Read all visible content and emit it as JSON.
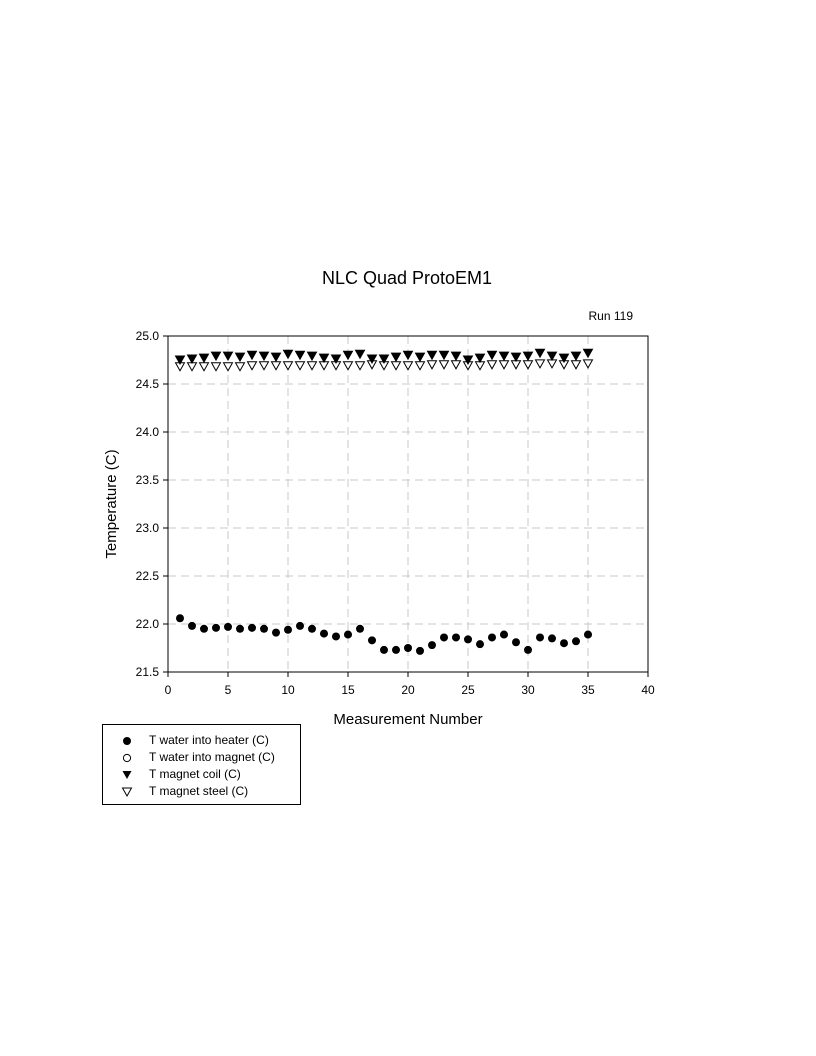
{
  "chart_data": {
    "type": "scatter",
    "title": "NLC Quad ProtoEM1",
    "subtitle": "Run 119",
    "xlabel": "Measurement Number",
    "ylabel": "Temperature (C)",
    "xlim": [
      0,
      40
    ],
    "ylim": [
      21.5,
      25.0
    ],
    "xticks": [
      "0",
      "5",
      "10",
      "15",
      "20",
      "25",
      "30",
      "35",
      "40"
    ],
    "yticks": [
      "21.5",
      "22.0",
      "22.5",
      "23.0",
      "23.5",
      "24.0",
      "24.5",
      "25.0"
    ],
    "grid": true,
    "legend_position": "bottom-left",
    "x": [
      1,
      2,
      3,
      4,
      5,
      6,
      7,
      8,
      9,
      10,
      11,
      12,
      13,
      14,
      15,
      16,
      17,
      18,
      19,
      20,
      21,
      22,
      23,
      24,
      25,
      26,
      27,
      28,
      29,
      30,
      31,
      32,
      33,
      34,
      35
    ],
    "series": [
      {
        "name": "T water into heater (C)",
        "marker": "filled-circle",
        "values": [
          22.06,
          21.98,
          21.95,
          21.96,
          21.97,
          21.95,
          21.96,
          21.95,
          21.91,
          21.94,
          21.98,
          21.95,
          21.9,
          21.87,
          21.89,
          21.95,
          21.83,
          21.73,
          21.73,
          21.75,
          21.72,
          21.78,
          21.86,
          21.86,
          21.84,
          21.79,
          21.86,
          21.89,
          21.81,
          21.73,
          21.86,
          21.85,
          21.8,
          21.82,
          21.89
        ]
      },
      {
        "name": "T water into magnet (C)",
        "marker": "open-circle",
        "values": []
      },
      {
        "name": "T magnet coil (C)",
        "marker": "filled-triangle-down",
        "values": [
          24.75,
          24.76,
          24.77,
          24.79,
          24.79,
          24.78,
          24.8,
          24.79,
          24.78,
          24.81,
          24.8,
          24.79,
          24.77,
          24.76,
          24.8,
          24.81,
          24.76,
          24.76,
          24.78,
          24.8,
          24.78,
          24.8,
          24.8,
          24.79,
          24.75,
          24.77,
          24.8,
          24.79,
          24.78,
          24.79,
          24.82,
          24.79,
          24.77,
          24.79,
          24.82
        ]
      },
      {
        "name": "T magnet steel (C)",
        "marker": "open-triangle-down",
        "values": [
          24.68,
          24.68,
          24.68,
          24.68,
          24.68,
          24.68,
          24.69,
          24.69,
          24.69,
          24.69,
          24.69,
          24.69,
          24.69,
          24.69,
          24.69,
          24.69,
          24.7,
          24.69,
          24.69,
          24.69,
          24.69,
          24.7,
          24.7,
          24.7,
          24.69,
          24.69,
          24.7,
          24.7,
          24.7,
          24.7,
          24.71,
          24.71,
          24.7,
          24.7,
          24.71
        ]
      }
    ]
  }
}
